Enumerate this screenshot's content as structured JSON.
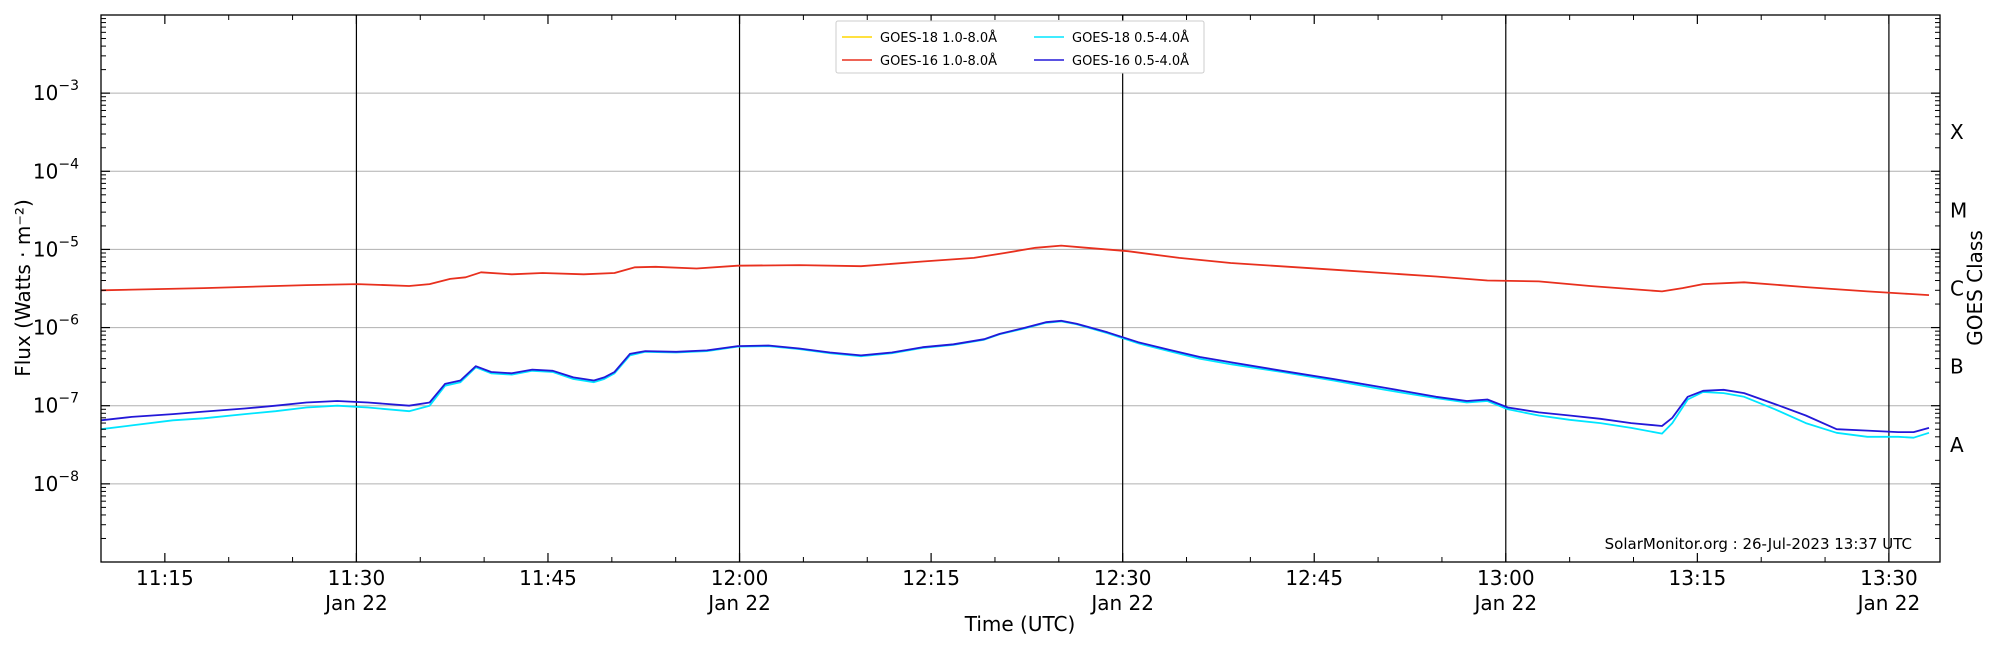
{
  "chart_data": {
    "type": "line",
    "title": "",
    "xlabel": "Time (UTC)",
    "ylabel": "Flux (Watts · m⁻²)",
    "y2label": "GOES Class",
    "yscale": "log",
    "ylim": [
      1e-09,
      0.01
    ],
    "xlim": [
      "11:10",
      "13:34"
    ],
    "grid": "horizontal",
    "legend_position": "top-center",
    "x_ticks": [
      {
        "t": "11:15",
        "label": "11:15",
        "sublabel": ""
      },
      {
        "t": "11:30",
        "label": "11:30",
        "sublabel": "Jan 22"
      },
      {
        "t": "11:45",
        "label": "11:45",
        "sublabel": ""
      },
      {
        "t": "12:00",
        "label": "12:00",
        "sublabel": "Jan 22"
      },
      {
        "t": "12:15",
        "label": "12:15",
        "sublabel": ""
      },
      {
        "t": "12:30",
        "label": "12:30",
        "sublabel": "Jan 22"
      },
      {
        "t": "12:45",
        "label": "12:45",
        "sublabel": ""
      },
      {
        "t": "13:00",
        "label": "13:00",
        "sublabel": "Jan 22"
      },
      {
        "t": "13:15",
        "label": "13:15",
        "sublabel": ""
      },
      {
        "t": "13:30",
        "label": "13:30",
        "sublabel": "Jan 22"
      }
    ],
    "vlines": [
      "11:30",
      "12:00",
      "12:30",
      "13:00",
      "13:30"
    ],
    "y_ticks": [
      {
        "exp": -8,
        "base": "10",
        "sup": "−8"
      },
      {
        "exp": -7,
        "base": "10",
        "sup": "−7"
      },
      {
        "exp": -6,
        "base": "10",
        "sup": "−6"
      },
      {
        "exp": -5,
        "base": "10",
        "sup": "−5"
      },
      {
        "exp": -4,
        "base": "10",
        "sup": "−4"
      },
      {
        "exp": -3,
        "base": "10",
        "sup": "−3"
      }
    ],
    "class_labels": [
      {
        "label": "A",
        "exp": -7.5
      },
      {
        "label": "B",
        "exp": -6.5
      },
      {
        "label": "C",
        "exp": -5.5
      },
      {
        "label": "M",
        "exp": -4.5
      },
      {
        "label": "X",
        "exp": -3.5
      }
    ],
    "series": [
      {
        "name": "GOES-18 1.0-8.0Å",
        "color": "#ffd700",
        "draw": false,
        "points": []
      },
      {
        "name": "GOES-18 0.5-4.0Å",
        "color": "#00e5ff",
        "draw": true,
        "points": [
          [
            "11:10",
            5e-08
          ],
          [
            "11:13",
            5.6e-08
          ],
          [
            "11:17",
            6.5e-08
          ],
          [
            "11:20",
            6.9e-08
          ],
          [
            "11:24",
            7.8e-08
          ],
          [
            "11:27",
            8.5e-08
          ],
          [
            "11:30",
            9.5e-08
          ],
          [
            "11:33",
            1e-07
          ],
          [
            "11:36",
            9.5e-08
          ],
          [
            "11:40",
            8.5e-08
          ],
          [
            "11:42",
            1e-07
          ],
          [
            "11:43.5",
            1.8e-07
          ],
          [
            "11:45",
            2e-07
          ],
          [
            "11:46.5",
            3.1e-07
          ],
          [
            "11:48",
            2.6e-07
          ],
          [
            "11:50",
            2.5e-07
          ],
          [
            "11:52",
            2.8e-07
          ],
          [
            "11:54",
            2.7e-07
          ],
          [
            "11:56",
            2.2e-07
          ],
          [
            "11:58",
            2e-07
          ],
          [
            "11:59",
            2.2e-07
          ],
          [
            "12:00",
            2.6e-07
          ],
          [
            "12:01.5",
            4.4e-07
          ],
          [
            "12:03",
            4.9e-07
          ],
          [
            "12:06",
            4.8e-07
          ],
          [
            "12:09",
            5e-07
          ],
          [
            "12:12",
            5.7e-07
          ],
          [
            "12:15",
            5.8e-07
          ],
          [
            "12:18",
            5.3e-07
          ],
          [
            "12:21",
            4.7e-07
          ],
          [
            "12:24",
            4.3e-07
          ],
          [
            "12:27",
            4.7e-07
          ],
          [
            "12:30",
            5.5e-07
          ],
          [
            "12:33",
            6e-07
          ],
          [
            "12:36",
            7e-07
          ],
          [
            "12:37.5",
            8.2e-07
          ],
          [
            "12:40",
            9.8e-07
          ],
          [
            "12:42",
            1.15e-06
          ],
          [
            "12:43.5",
            1.2e-06
          ],
          [
            "12:45",
            1.1e-06
          ],
          [
            "12:48",
            8.5e-07
          ],
          [
            "12:51",
            6.3e-07
          ],
          [
            "12:54",
            5e-07
          ],
          [
            "12:57",
            4e-07
          ],
          [
            "13:00",
            3.4e-07
          ],
          [
            "13:05",
            2.7e-07
          ],
          [
            "13:10",
            2.1e-07
          ],
          [
            "13:15",
            1.6e-07
          ],
          [
            "13:20",
            1.25e-07
          ],
          [
            "13:23",
            1.1e-07
          ],
          [
            "13:25",
            1.15e-07
          ],
          [
            "13:27",
            9e-08
          ],
          [
            "13:30",
            7.5e-08
          ],
          [
            "13:33",
            6.6e-08
          ],
          [
            "13:36",
            6e-08
          ],
          [
            "13:39",
            5.2e-08
          ],
          [
            "13:42",
            4.4e-08
          ],
          [
            "13:43",
            6e-08
          ],
          [
            "13:44.5",
            1.2e-07
          ],
          [
            "13:46",
            1.5e-07
          ],
          [
            "13:48",
            1.45e-07
          ],
          [
            "13:50",
            1.3e-07
          ],
          [
            "13:53",
            9e-08
          ],
          [
            "13:56",
            6e-08
          ],
          [
            "13:59",
            4.5e-08
          ],
          [
            "14:02",
            4e-08
          ],
          [
            "14:05",
            4e-08
          ],
          [
            "14:06.5",
            3.9e-08
          ],
          [
            "14:08",
            4.5e-08
          ]
        ]
      },
      {
        "name": "GOES-16 1.0-8.0Å",
        "color": "#e8301e",
        "draw": true,
        "points": [
          [
            "11:10",
            3e-06
          ],
          [
            "11:20",
            3.2e-06
          ],
          [
            "11:30",
            3.5e-06
          ],
          [
            "11:35",
            3.6e-06
          ],
          [
            "11:40",
            3.4e-06
          ],
          [
            "11:42",
            3.6e-06
          ],
          [
            "11:44",
            4.2e-06
          ],
          [
            "11:45.5",
            4.4e-06
          ],
          [
            "11:47",
            5.1e-06
          ],
          [
            "11:50",
            4.8e-06
          ],
          [
            "11:53",
            5e-06
          ],
          [
            "11:57",
            4.8e-06
          ],
          [
            "12:00",
            5e-06
          ],
          [
            "12:02",
            5.9e-06
          ],
          [
            "12:04",
            6e-06
          ],
          [
            "12:08",
            5.7e-06
          ],
          [
            "12:12",
            6.2e-06
          ],
          [
            "12:18",
            6.3e-06
          ],
          [
            "12:24",
            6.1e-06
          ],
          [
            "12:30",
            7e-06
          ],
          [
            "12:35",
            7.8e-06
          ],
          [
            "12:38",
            9e-06
          ],
          [
            "12:41",
            1.05e-05
          ],
          [
            "12:43.5",
            1.12e-05
          ],
          [
            "12:46",
            1.05e-05
          ],
          [
            "12:50",
            9.5e-06
          ],
          [
            "12:55",
            7.8e-06
          ],
          [
            "13:00",
            6.7e-06
          ],
          [
            "13:10",
            5.5e-06
          ],
          [
            "13:20",
            4.5e-06
          ],
          [
            "13:25",
            4e-06
          ],
          [
            "13:30",
            3.9e-06
          ],
          [
            "13:35",
            3.4e-06
          ],
          [
            "13:42",
            2.9e-06
          ],
          [
            "13:44",
            3.2e-06
          ],
          [
            "13:46",
            3.6e-06
          ],
          [
            "13:50",
            3.8e-06
          ],
          [
            "13:56",
            3.3e-06
          ],
          [
            "14:02",
            2.9e-06
          ],
          [
            "14:06",
            2.7e-06
          ],
          [
            "14:08",
            2.6e-06
          ]
        ]
      },
      {
        "name": "GOES-16 0.5-4.0Å",
        "color": "#2318d8",
        "draw": true,
        "points": [
          [
            "11:10",
            6.5e-08
          ],
          [
            "11:13",
            7.2e-08
          ],
          [
            "11:17",
            7.8e-08
          ],
          [
            "11:20",
            8.4e-08
          ],
          [
            "11:24",
            9.2e-08
          ],
          [
            "11:27",
            1e-07
          ],
          [
            "11:30",
            1.1e-07
          ],
          [
            "11:33",
            1.15e-07
          ],
          [
            "11:36",
            1.1e-07
          ],
          [
            "11:40",
            1e-07
          ],
          [
            "11:42",
            1.1e-07
          ],
          [
            "11:43.5",
            1.9e-07
          ],
          [
            "11:45",
            2.1e-07
          ],
          [
            "11:46.5",
            3.2e-07
          ],
          [
            "11:48",
            2.7e-07
          ],
          [
            "11:50",
            2.6e-07
          ],
          [
            "11:52",
            2.9e-07
          ],
          [
            "11:54",
            2.8e-07
          ],
          [
            "11:56",
            2.3e-07
          ],
          [
            "11:58",
            2.1e-07
          ],
          [
            "11:59",
            2.3e-07
          ],
          [
            "12:00",
            2.7e-07
          ],
          [
            "12:01.5",
            4.6e-07
          ],
          [
            "12:03",
            5e-07
          ],
          [
            "12:06",
            4.9e-07
          ],
          [
            "12:09",
            5.1e-07
          ],
          [
            "12:12",
            5.8e-07
          ],
          [
            "12:15",
            5.9e-07
          ],
          [
            "12:18",
            5.4e-07
          ],
          [
            "12:21",
            4.8e-07
          ],
          [
            "12:24",
            4.4e-07
          ],
          [
            "12:27",
            4.8e-07
          ],
          [
            "12:30",
            5.6e-07
          ],
          [
            "12:33",
            6.1e-07
          ],
          [
            "12:36",
            7.1e-07
          ],
          [
            "12:37.5",
            8.3e-07
          ],
          [
            "12:40",
            1e-06
          ],
          [
            "12:42",
            1.17e-06
          ],
          [
            "12:43.5",
            1.22e-06
          ],
          [
            "12:45",
            1.12e-06
          ],
          [
            "12:48",
            8.7e-07
          ],
          [
            "12:51",
            6.5e-07
          ],
          [
            "12:54",
            5.2e-07
          ],
          [
            "12:57",
            4.2e-07
          ],
          [
            "13:00",
            3.6e-07
          ],
          [
            "13:05",
            2.8e-07
          ],
          [
            "13:10",
            2.2e-07
          ],
          [
            "13:15",
            1.7e-07
          ],
          [
            "13:20",
            1.3e-07
          ],
          [
            "13:23",
            1.15e-07
          ],
          [
            "13:25",
            1.2e-07
          ],
          [
            "13:27",
            9.5e-08
          ],
          [
            "13:30",
            8.2e-08
          ],
          [
            "13:33",
            7.5e-08
          ],
          [
            "13:36",
            6.8e-08
          ],
          [
            "13:39",
            6e-08
          ],
          [
            "13:42",
            5.5e-08
          ],
          [
            "13:43",
            7e-08
          ],
          [
            "13:44.5",
            1.3e-07
          ],
          [
            "13:46",
            1.55e-07
          ],
          [
            "13:48",
            1.6e-07
          ],
          [
            "13:50",
            1.45e-07
          ],
          [
            "13:53",
            1.05e-07
          ],
          [
            "13:56",
            7.5e-08
          ],
          [
            "13:59",
            5e-08
          ],
          [
            "14:02",
            4.8e-08
          ],
          [
            "14:05",
            4.6e-08
          ],
          [
            "14:06.5",
            4.6e-08
          ],
          [
            "14:08",
            5.2e-08
          ]
        ]
      }
    ],
    "annotation": "SolarMonitor.org : 26-Jul-2023 13:37 UTC"
  }
}
